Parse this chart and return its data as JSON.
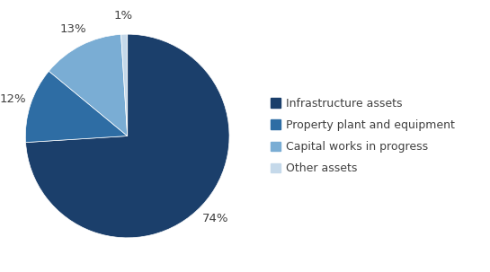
{
  "labels": [
    "Infrastructure assets",
    "Property plant and equipment",
    "Capital works in progress",
    "Other assets"
  ],
  "values": [
    74,
    12,
    13,
    1
  ],
  "colors": [
    "#1b3f6b",
    "#2e6da4",
    "#7aadd4",
    "#c5d9ea"
  ],
  "pct_labels": [
    "74%",
    "12%",
    "13%",
    "1%"
  ],
  "startangle": 90,
  "background_color": "#ffffff",
  "text_color": "#404040",
  "label_fontsize": 9.5,
  "legend_fontsize": 9
}
